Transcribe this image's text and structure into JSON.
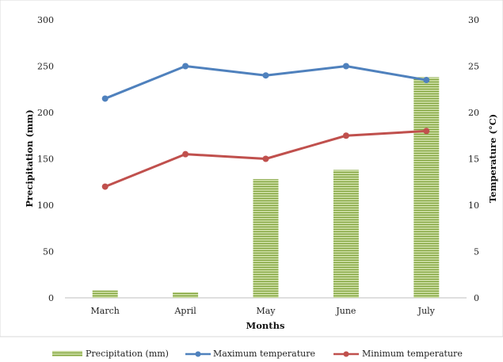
{
  "chart_data": {
    "type": "bar",
    "categories": [
      "March",
      "April",
      "May",
      "June",
      "July"
    ],
    "series": [
      {
        "name": "Precipitation (mm)",
        "kind": "bar",
        "axis": "left",
        "values": [
          8,
          6,
          128,
          138,
          238
        ],
        "color": "#9bbb59"
      },
      {
        "name": "Maximum temperature",
        "kind": "line",
        "axis": "right",
        "values": [
          21.5,
          25,
          24,
          25,
          23.5
        ],
        "color": "#4f81bd"
      },
      {
        "name": "Minimum temperature",
        "kind": "line",
        "axis": "right",
        "values": [
          12,
          15.5,
          15,
          17.5,
          18
        ],
        "color": "#c0504d"
      }
    ],
    "xlabel": "Months",
    "ylabel": "Precipitation (mm)",
    "y2label": "Temperature (°C)",
    "ylim": [
      0,
      300
    ],
    "y2lim": [
      0,
      30
    ],
    "yticks": [
      "0",
      "50",
      "100",
      "150",
      "200",
      "250",
      "300"
    ],
    "y2ticks": [
      "0",
      "5",
      "10",
      "15",
      "20",
      "25",
      "30"
    ],
    "grid": false,
    "legend": "bottom"
  }
}
